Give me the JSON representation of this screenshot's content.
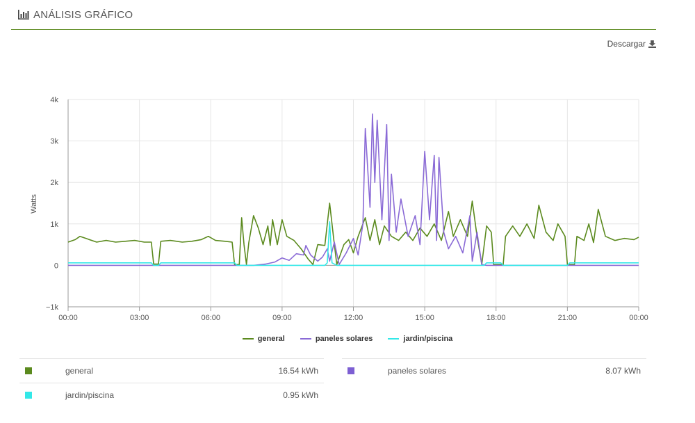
{
  "header": {
    "title": "ANÁLISIS GRÁFICO",
    "icon": "bar-chart-icon"
  },
  "toolbar": {
    "download_label": "Descargar",
    "download_icon": "download-icon"
  },
  "chart_data": {
    "type": "line",
    "ylabel": "Watts",
    "ylim": [
      -1000,
      4000
    ],
    "yticks": [
      "−1k",
      "0",
      "1k",
      "2k",
      "3k",
      "4k"
    ],
    "xlim_hours": [
      0,
      24
    ],
    "xticks": [
      "00:00",
      "03:00",
      "06:00",
      "09:00",
      "12:00",
      "15:00",
      "18:00",
      "21:00",
      "00:00"
    ],
    "grid": true,
    "legend_position": "bottom",
    "series": [
      {
        "name": "general",
        "color": "#5b8a1e",
        "points": [
          [
            0,
            560
          ],
          [
            0.3,
            620
          ],
          [
            0.5,
            700
          ],
          [
            0.8,
            640
          ],
          [
            1.2,
            560
          ],
          [
            1.6,
            600
          ],
          [
            2.0,
            560
          ],
          [
            2.4,
            580
          ],
          [
            2.8,
            600
          ],
          [
            3.2,
            560
          ],
          [
            3.5,
            560
          ],
          [
            3.6,
            30
          ],
          [
            3.8,
            30
          ],
          [
            3.9,
            580
          ],
          [
            4.3,
            600
          ],
          [
            4.8,
            560
          ],
          [
            5.2,
            580
          ],
          [
            5.6,
            620
          ],
          [
            5.9,
            700
          ],
          [
            6.2,
            600
          ],
          [
            6.6,
            580
          ],
          [
            6.9,
            560
          ],
          [
            7.0,
            20
          ],
          [
            7.2,
            20
          ],
          [
            7.3,
            1150
          ],
          [
            7.4,
            500
          ],
          [
            7.5,
            20
          ],
          [
            7.6,
            550
          ],
          [
            7.8,
            1200
          ],
          [
            8.0,
            900
          ],
          [
            8.2,
            500
          ],
          [
            8.4,
            950
          ],
          [
            8.5,
            480
          ],
          [
            8.6,
            1100
          ],
          [
            8.8,
            500
          ],
          [
            9.0,
            1100
          ],
          [
            9.2,
            700
          ],
          [
            9.5,
            600
          ],
          [
            9.8,
            400
          ],
          [
            10.1,
            150
          ],
          [
            10.3,
            20
          ],
          [
            10.5,
            500
          ],
          [
            10.8,
            480
          ],
          [
            11.0,
            1500
          ],
          [
            11.2,
            500
          ],
          [
            11.3,
            20
          ],
          [
            11.6,
            500
          ],
          [
            11.8,
            620
          ],
          [
            12.0,
            300
          ],
          [
            12.2,
            700
          ],
          [
            12.5,
            1150
          ],
          [
            12.7,
            600
          ],
          [
            12.9,
            1100
          ],
          [
            13.1,
            500
          ],
          [
            13.3,
            950
          ],
          [
            13.6,
            700
          ],
          [
            13.9,
            600
          ],
          [
            14.2,
            800
          ],
          [
            14.5,
            600
          ],
          [
            14.8,
            900
          ],
          [
            15.1,
            700
          ],
          [
            15.4,
            1000
          ],
          [
            15.7,
            600
          ],
          [
            16.0,
            1300
          ],
          [
            16.2,
            700
          ],
          [
            16.5,
            1100
          ],
          [
            16.8,
            700
          ],
          [
            17.0,
            1550
          ],
          [
            17.2,
            700
          ],
          [
            17.4,
            20
          ],
          [
            17.6,
            950
          ],
          [
            17.8,
            800
          ],
          [
            17.9,
            20
          ],
          [
            18.3,
            20
          ],
          [
            18.4,
            700
          ],
          [
            18.7,
            950
          ],
          [
            19.0,
            700
          ],
          [
            19.3,
            1000
          ],
          [
            19.6,
            650
          ],
          [
            19.8,
            1450
          ],
          [
            20.1,
            800
          ],
          [
            20.4,
            600
          ],
          [
            20.6,
            1000
          ],
          [
            20.9,
            700
          ],
          [
            21.0,
            20
          ],
          [
            21.3,
            20
          ],
          [
            21.4,
            700
          ],
          [
            21.7,
            600
          ],
          [
            21.9,
            1000
          ],
          [
            22.1,
            550
          ],
          [
            22.3,
            1350
          ],
          [
            22.6,
            700
          ],
          [
            23.0,
            600
          ],
          [
            23.4,
            650
          ],
          [
            23.8,
            620
          ],
          [
            24.0,
            680
          ]
        ]
      },
      {
        "name": "paneles solares",
        "color": "#8a6ad6",
        "points": [
          [
            0,
            0
          ],
          [
            7.8,
            0
          ],
          [
            8.3,
            30
          ],
          [
            8.7,
            80
          ],
          [
            9.0,
            180
          ],
          [
            9.3,
            120
          ],
          [
            9.6,
            280
          ],
          [
            9.9,
            250
          ],
          [
            10.0,
            480
          ],
          [
            10.2,
            250
          ],
          [
            10.5,
            100
          ],
          [
            10.7,
            200
          ],
          [
            10.9,
            400
          ],
          [
            11.0,
            100
          ],
          [
            11.2,
            560
          ],
          [
            11.4,
            20
          ],
          [
            11.7,
            300
          ],
          [
            12.0,
            650
          ],
          [
            12.2,
            250
          ],
          [
            12.4,
            1000
          ],
          [
            12.5,
            3300
          ],
          [
            12.7,
            1400
          ],
          [
            12.8,
            3650
          ],
          [
            12.9,
            2000
          ],
          [
            13.0,
            3500
          ],
          [
            13.2,
            1100
          ],
          [
            13.4,
            3400
          ],
          [
            13.5,
            600
          ],
          [
            13.6,
            2200
          ],
          [
            13.8,
            800
          ],
          [
            14.0,
            1600
          ],
          [
            14.3,
            700
          ],
          [
            14.6,
            1200
          ],
          [
            14.8,
            500
          ],
          [
            15.0,
            2750
          ],
          [
            15.2,
            1100
          ],
          [
            15.4,
            2650
          ],
          [
            15.5,
            600
          ],
          [
            15.6,
            2600
          ],
          [
            15.8,
            800
          ],
          [
            16.0,
            400
          ],
          [
            16.3,
            700
          ],
          [
            16.6,
            300
          ],
          [
            16.9,
            1200
          ],
          [
            17.0,
            100
          ],
          [
            17.2,
            800
          ],
          [
            17.4,
            20
          ],
          [
            17.6,
            0
          ],
          [
            24.0,
            0
          ]
        ]
      },
      {
        "name": "jardin/piscina",
        "color": "#33e8e8",
        "points": [
          [
            0,
            60
          ],
          [
            3.5,
            60
          ],
          [
            3.6,
            0
          ],
          [
            3.8,
            0
          ],
          [
            3.9,
            60
          ],
          [
            7.0,
            60
          ],
          [
            7.1,
            0
          ],
          [
            10.8,
            0
          ],
          [
            10.9,
            60
          ],
          [
            11.0,
            1050
          ],
          [
            11.1,
            60
          ],
          [
            11.3,
            0
          ],
          [
            17.5,
            0
          ],
          [
            17.6,
            60
          ],
          [
            18.2,
            60
          ],
          [
            18.3,
            0
          ],
          [
            21.0,
            0
          ],
          [
            21.1,
            60
          ],
          [
            24.0,
            60
          ]
        ]
      }
    ]
  },
  "legend": [
    {
      "label": "general",
      "color": "#5b8a1e"
    },
    {
      "label": "paneles solares",
      "color": "#8a6ad6"
    },
    {
      "label": "jardin/piscina",
      "color": "#33e8e8"
    }
  ],
  "stats": {
    "left": [
      {
        "label": "general",
        "value": "16.54 kWh",
        "color": "#5b8a1e"
      },
      {
        "label": "jardin/piscina",
        "value": "0.95 kWh",
        "color": "#33e8e8"
      }
    ],
    "right": [
      {
        "label": "paneles solares",
        "value": "8.07 kWh",
        "color": "#7d5fd3"
      }
    ]
  }
}
